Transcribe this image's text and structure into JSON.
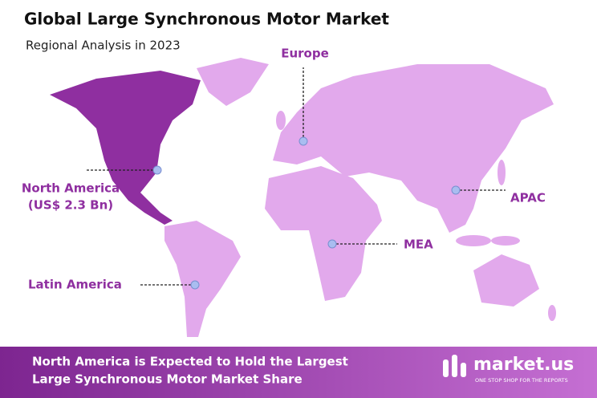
{
  "header": {
    "title": "Global Large Synchronous Motor Market",
    "subtitle": "Regional Analysis in 2023"
  },
  "regions": [
    {
      "label": "Europe"
    },
    {
      "label": "North America",
      "value": "(US$ 2.3 Bn)"
    },
    {
      "label": "APAC"
    },
    {
      "label": "MEA"
    },
    {
      "label": "Latin America"
    }
  ],
  "footer": {
    "lines": [
      "North America is Expected to Hold the Largest",
      "Large Synchronous Motor Market Share"
    ]
  },
  "logo": {
    "name": "market.us",
    "tagline": "ONE STOP SHOP FOR THE REPORTS"
  }
}
